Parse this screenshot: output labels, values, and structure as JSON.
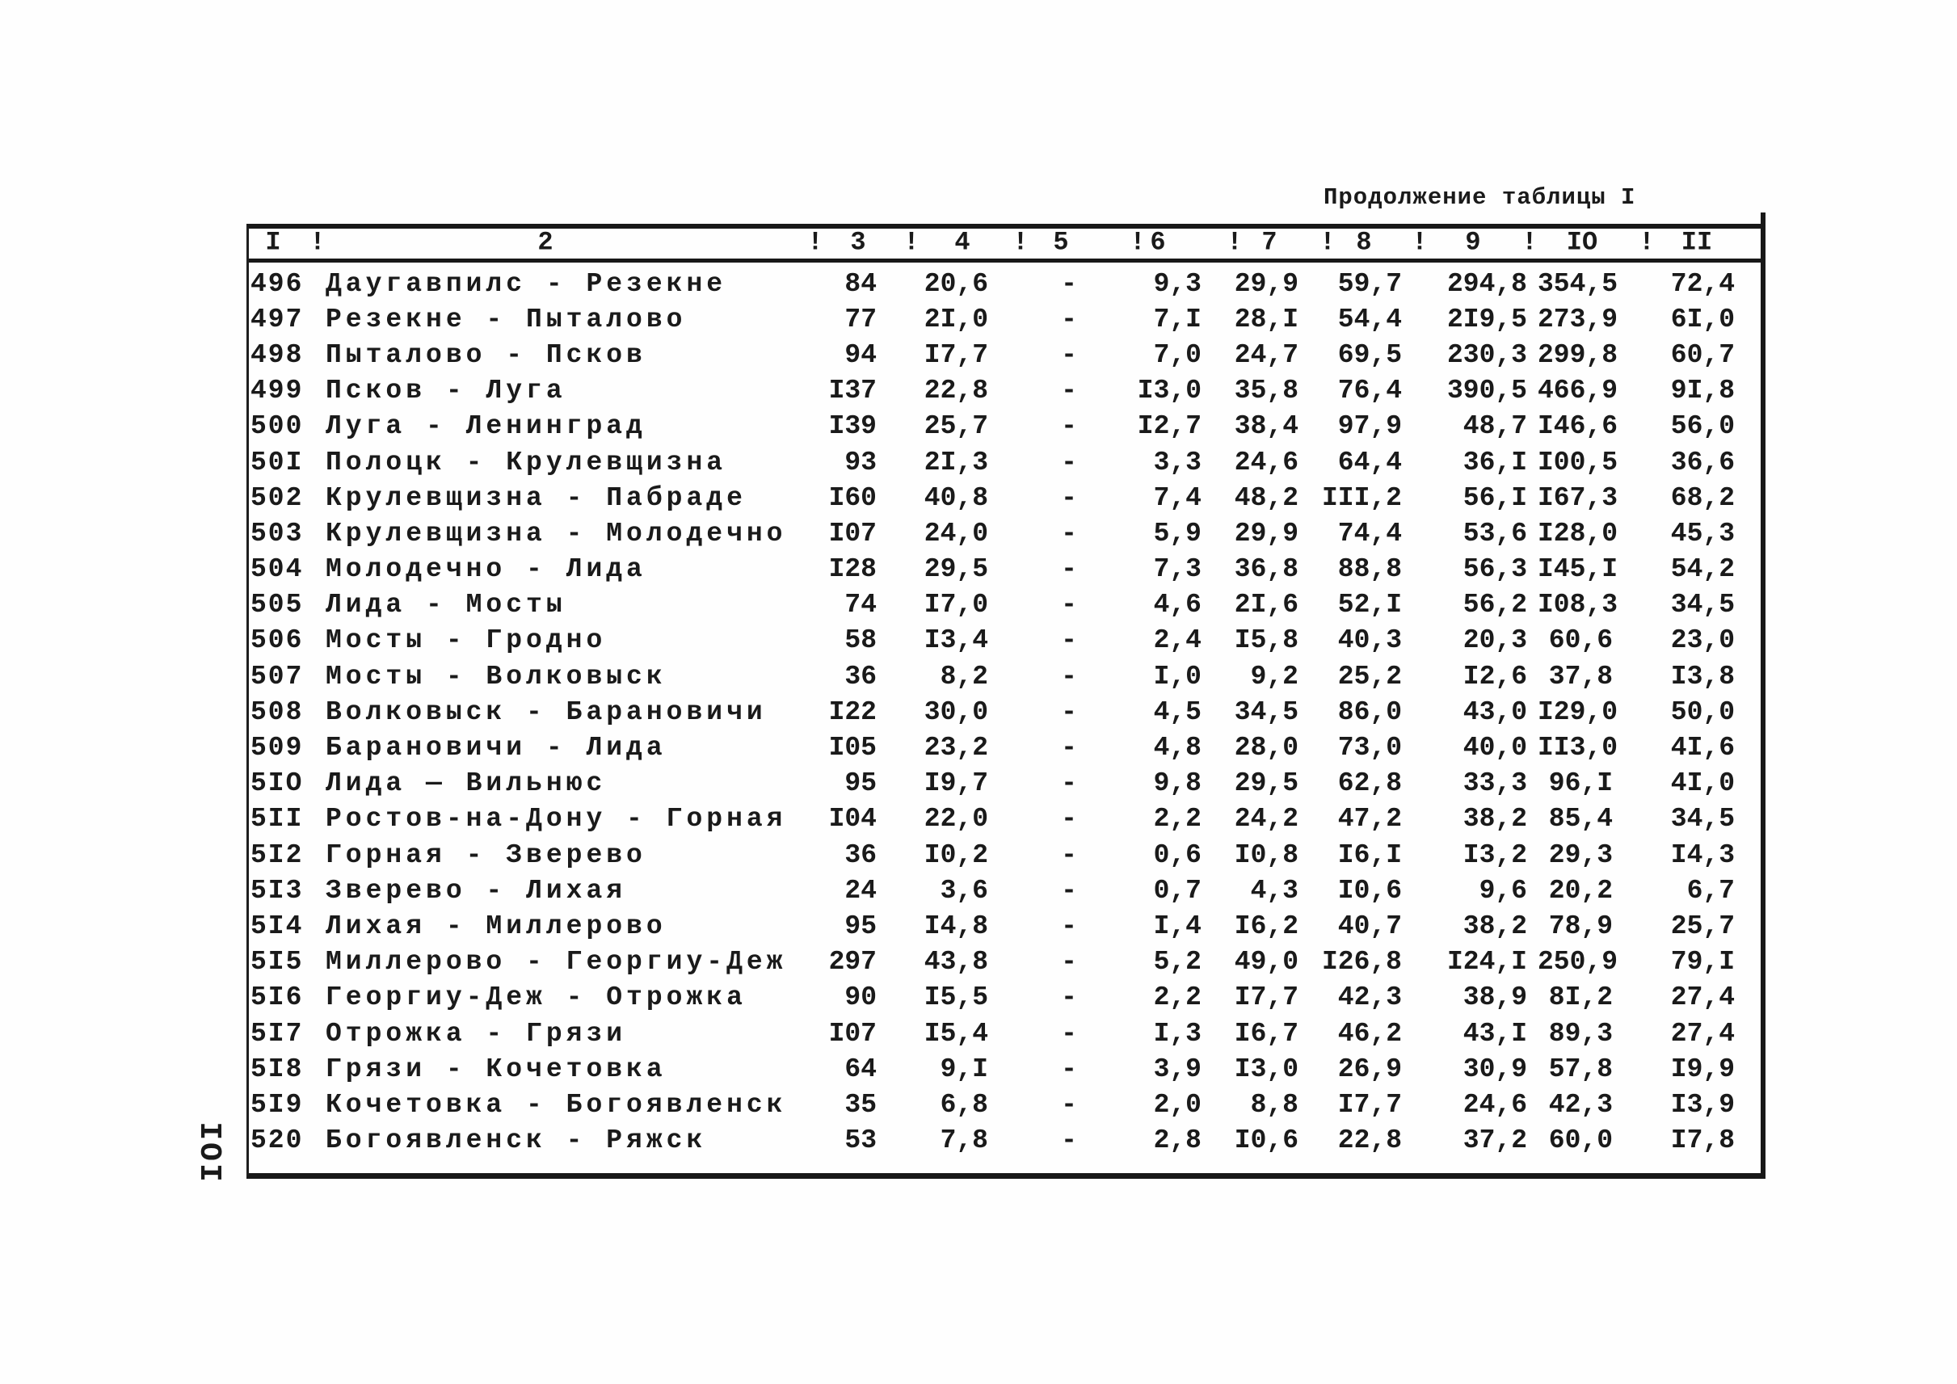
{
  "page": {
    "title": "Продолжение таблицы I",
    "page_number": "IOI"
  },
  "table": {
    "header_labels": [
      "I",
      "2",
      "3",
      "4",
      "5",
      "6",
      "7",
      "8",
      "9",
      "IO",
      "II"
    ],
    "separator": "!",
    "rows": [
      {
        "num": "496",
        "route": "Даугавпилс - Резекне",
        "values": [
          "84",
          "20,6",
          "-",
          "9,3",
          "29,9",
          "59,7",
          "294,8",
          "354,5",
          "72,4"
        ]
      },
      {
        "num": "497",
        "route": "Резекне - Пыталово",
        "values": [
          "77",
          "2I,0",
          "-",
          "7,I",
          "28,I",
          "54,4",
          "2I9,5",
          "273,9",
          "6I,0"
        ]
      },
      {
        "num": "498",
        "route": "Пыталово - Псков",
        "values": [
          "94",
          "I7,7",
          "-",
          "7,0",
          "24,7",
          "69,5",
          "230,3",
          "299,8",
          "60,7"
        ]
      },
      {
        "num": "499",
        "route": "Псков - Луга",
        "values": [
          "I37",
          "22,8",
          "-",
          "I3,0",
          "35,8",
          "76,4",
          "390,5",
          "466,9",
          "9I,8"
        ]
      },
      {
        "num": "500",
        "route": "Луга - Ленинград",
        "values": [
          "I39",
          "25,7",
          "-",
          "I2,7",
          "38,4",
          "97,9",
          "48,7",
          "I46,6",
          "56,0"
        ]
      },
      {
        "num": "50I",
        "route": "Полоцк - Крулевщизна",
        "values": [
          "93",
          "2I,3",
          "-",
          "3,3",
          "24,6",
          "64,4",
          "36,I",
          "I00,5",
          "36,6"
        ]
      },
      {
        "num": "502",
        "route": "Крулевщизна - Пабраде",
        "values": [
          "I60",
          "40,8",
          "-",
          "7,4",
          "48,2",
          "III,2",
          "56,I",
          "I67,3",
          "68,2"
        ]
      },
      {
        "num": "503",
        "route": "Крулевщизна - Молодечно",
        "values": [
          "I07",
          "24,0",
          "-",
          "5,9",
          "29,9",
          "74,4",
          "53,6",
          "I28,0",
          "45,3"
        ]
      },
      {
        "num": "504",
        "route": "Молодечно - Лида",
        "values": [
          "I28",
          "29,5",
          "-",
          "7,3",
          "36,8",
          "88,8",
          "56,3",
          "I45,I",
          "54,2"
        ]
      },
      {
        "num": "505",
        "route": "Лида - Мосты",
        "values": [
          "74",
          "I7,0",
          "-",
          "4,6",
          "2I,6",
          "52,I",
          "56,2",
          "I08,3",
          "34,5"
        ]
      },
      {
        "num": "506",
        "route": "Мосты - Гродно",
        "values": [
          "58",
          "I3,4",
          "-",
          "2,4",
          "I5,8",
          "40,3",
          "20,3",
          "60,6",
          "23,0"
        ]
      },
      {
        "num": "507",
        "route": "Мосты - Волковыск",
        "values": [
          "36",
          "8,2",
          "-",
          "I,0",
          "9,2",
          "25,2",
          "I2,6",
          "37,8",
          "I3,8"
        ]
      },
      {
        "num": "508",
        "route": "Волковыск - Барановичи",
        "values": [
          "I22",
          "30,0",
          "-",
          "4,5",
          "34,5",
          "86,0",
          "43,0",
          "I29,0",
          "50,0"
        ]
      },
      {
        "num": "509",
        "route": "Барановичи - Лида",
        "values": [
          "I05",
          "23,2",
          "-",
          "4,8",
          "28,0",
          "73,0",
          "40,0",
          "II3,0",
          "4I,6"
        ]
      },
      {
        "num": "5IO",
        "route": "Лида — Вильнюс",
        "values": [
          "95",
          "I9,7",
          "-",
          "9,8",
          "29,5",
          "62,8",
          "33,3",
          "96,I",
          "4I,0"
        ]
      },
      {
        "num": "5II",
        "route": "Ростов-на-Дону - Горная",
        "values": [
          "I04",
          "22,0",
          "-",
          "2,2",
          "24,2",
          "47,2",
          "38,2",
          "85,4",
          "34,5"
        ]
      },
      {
        "num": "5I2",
        "route": "Горная - Зверево",
        "values": [
          "36",
          "I0,2",
          "-",
          "0,6",
          "I0,8",
          "I6,I",
          "I3,2",
          "29,3",
          "I4,3"
        ]
      },
      {
        "num": "5I3",
        "route": "Зверево - Лихая",
        "values": [
          "24",
          "3,6",
          "-",
          "0,7",
          "4,3",
          "I0,6",
          "9,6",
          "20,2",
          "6,7"
        ]
      },
      {
        "num": "5I4",
        "route": "Лихая - Миллерово",
        "values": [
          "95",
          "I4,8",
          "-",
          "I,4",
          "I6,2",
          "40,7",
          "38,2",
          "78,9",
          "25,7"
        ]
      },
      {
        "num": "5I5",
        "route": "Миллерово - Георгиу-Деж",
        "values": [
          "297",
          "43,8",
          "-",
          "5,2",
          "49,0",
          "I26,8",
          "I24,I",
          "250,9",
          "79,I"
        ]
      },
      {
        "num": "5I6",
        "route": "Георгиу-Деж - Отрожка",
        "values": [
          "90",
          "I5,5",
          "-",
          "2,2",
          "I7,7",
          "42,3",
          "38,9",
          "8I,2",
          "27,4"
        ]
      },
      {
        "num": "5I7",
        "route": "Отрожка - Грязи",
        "values": [
          "I07",
          "I5,4",
          "-",
          "I,3",
          "I6,7",
          "46,2",
          "43,I",
          "89,3",
          "27,4"
        ]
      },
      {
        "num": "5I8",
        "route": "Грязи - Кочетовка",
        "values": [
          "64",
          "9,I",
          "-",
          "3,9",
          "I3,0",
          "26,9",
          "30,9",
          "57,8",
          "I9,9"
        ]
      },
      {
        "num": "5I9",
        "route": "Кочетовка - Богоявленск",
        "values": [
          "35",
          "6,8",
          "-",
          "2,0",
          "8,8",
          "I7,7",
          "24,6",
          "42,3",
          "I3,9"
        ]
      },
      {
        "num": "520",
        "route": "Богоявленск - Ряжск",
        "values": [
          "53",
          "7,8",
          "-",
          "2,8",
          "I0,6",
          "22,8",
          "37,2",
          "60,0",
          "I7,8"
        ]
      }
    ]
  }
}
